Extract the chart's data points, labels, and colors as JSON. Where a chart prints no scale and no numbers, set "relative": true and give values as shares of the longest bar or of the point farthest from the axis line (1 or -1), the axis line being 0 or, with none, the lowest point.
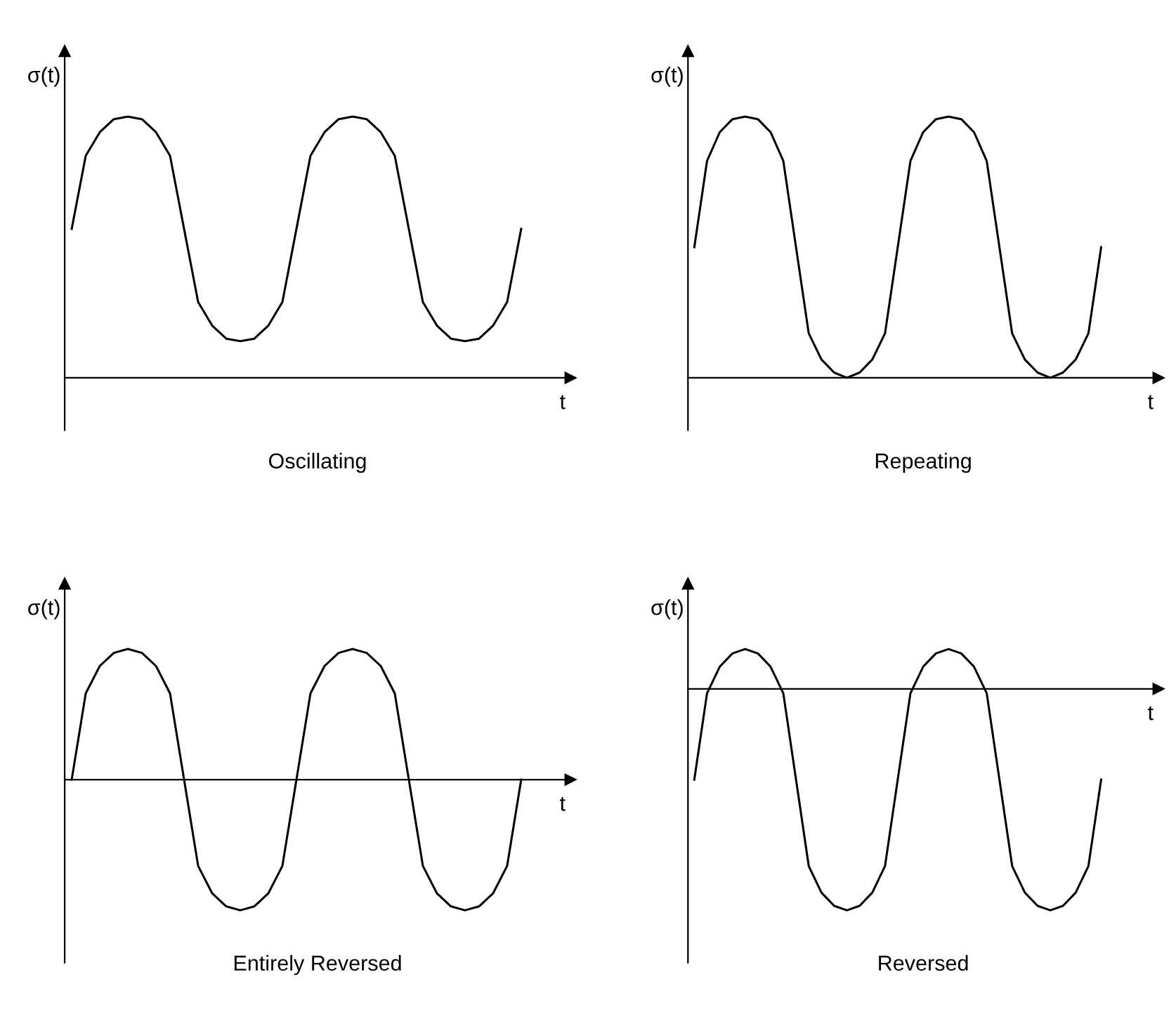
{
  "chart_data": [
    {
      "type": "line",
      "title": "Oscillating",
      "xlabel": "t",
      "ylabel": "σ(t)",
      "relative": true,
      "categories": [
        null,
        null,
        null,
        null,
        null,
        null,
        null,
        null,
        null,
        null,
        null,
        null,
        null,
        null,
        null,
        null,
        null,
        null,
        null,
        null,
        null,
        null,
        null,
        null,
        null,
        null,
        null,
        null,
        null,
        null,
        null,
        null,
        null
      ],
      "series": [
        {
          "color": "#000000",
          "values": [
            0.57,
            0.85,
            0.94,
            0.99,
            1,
            0.99,
            0.94,
            0.85,
            0.57,
            0.29,
            0.2,
            0.15,
            0.14,
            0.15,
            0.2,
            0.29,
            0.57,
            0.85,
            0.94,
            0.99,
            1,
            0.99,
            0.94,
            0.85,
            0.57,
            0.29,
            0.2,
            0.15,
            0.14,
            0.15,
            0.2,
            0.29,
            0.57
          ]
        }
      ]
    },
    {
      "type": "line",
      "title": "Repeating",
      "xlabel": "t",
      "ylabel": "σ(t)",
      "relative": true,
      "categories": [
        null,
        null,
        null,
        null,
        null,
        null,
        null,
        null,
        null,
        null,
        null,
        null,
        null,
        null,
        null,
        null,
        null,
        null,
        null,
        null,
        null,
        null,
        null,
        null,
        null,
        null,
        null,
        null,
        null,
        null,
        null,
        null,
        null
      ],
      "series": [
        {
          "color": "#000000",
          "values": [
            0.5,
            0.83,
            0.94,
            0.99,
            1,
            0.99,
            0.94,
            0.83,
            0.5,
            0.17,
            0.07,
            0.02,
            0,
            0.02,
            0.07,
            0.17,
            0.5,
            0.83,
            0.94,
            0.99,
            1,
            0.99,
            0.94,
            0.83,
            0.5,
            0.17,
            0.07,
            0.02,
            0,
            0.02,
            0.07,
            0.17,
            0.5
          ]
        }
      ]
    },
    {
      "type": "line",
      "title": "Entirely Reversed",
      "xlabel": "t",
      "ylabel": "σ(t)",
      "relative": true,
      "categories": [
        null,
        null,
        null,
        null,
        null,
        null,
        null,
        null,
        null,
        null,
        null,
        null,
        null,
        null,
        null,
        null,
        null,
        null,
        null,
        null,
        null,
        null,
        null,
        null,
        null,
        null,
        null,
        null,
        null,
        null,
        null,
        null,
        null
      ],
      "series": [
        {
          "color": "#000000",
          "values": [
            0,
            0.66,
            0.87,
            0.97,
            1,
            0.97,
            0.87,
            0.66,
            0,
            -0.66,
            -0.87,
            -0.97,
            -1,
            -0.97,
            -0.87,
            -0.66,
            0,
            0.66,
            0.87,
            0.97,
            1,
            0.97,
            0.87,
            0.66,
            0,
            -0.66,
            -0.87,
            -0.97,
            -1,
            -0.97,
            -0.87,
            -0.66,
            0
          ]
        }
      ]
    },
    {
      "type": "line",
      "title": "Reversed",
      "xlabel": "t",
      "ylabel": "σ(t)",
      "relative": true,
      "categories": [
        null,
        null,
        null,
        null,
        null,
        null,
        null,
        null,
        null,
        null,
        null,
        null,
        null,
        null,
        null,
        null,
        null,
        null,
        null,
        null,
        null,
        null,
        null,
        null,
        null,
        null,
        null,
        null,
        null,
        null,
        null,
        null,
        null
      ],
      "series": [
        {
          "color": "#000000",
          "values": [
            -0.41,
            -0.02,
            0.1,
            0.16,
            0.18,
            0.16,
            0.1,
            -0.02,
            -0.41,
            -0.8,
            -0.92,
            -0.98,
            -1,
            -0.98,
            -0.92,
            -0.8,
            -0.41,
            -0.02,
            0.1,
            0.16,
            0.18,
            0.16,
            0.1,
            -0.02,
            -0.41,
            -0.8,
            -0.92,
            -0.98,
            -1,
            -0.98,
            -0.92,
            -0.8,
            -0.41
          ]
        }
      ]
    }
  ]
}
